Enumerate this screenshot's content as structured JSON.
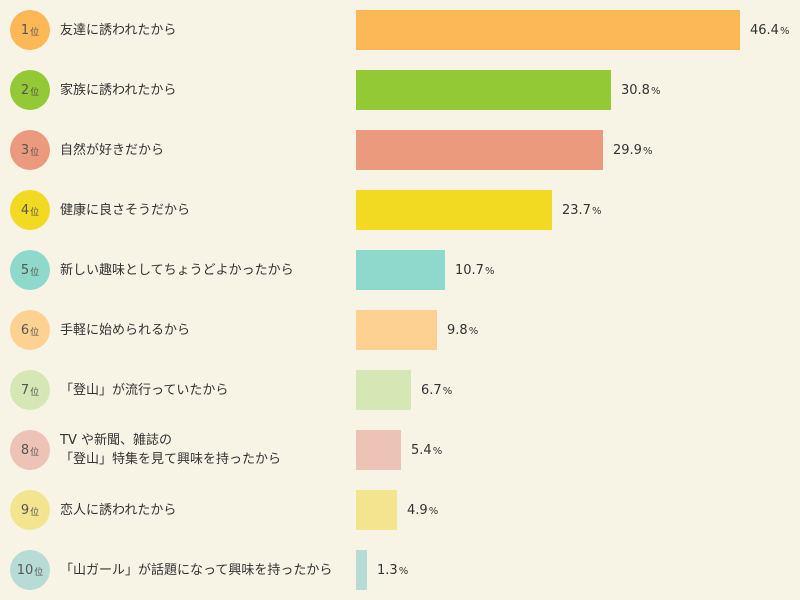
{
  "chart_data": {
    "type": "bar",
    "orientation": "horizontal",
    "rank_suffix": "位",
    "unit": "%",
    "xlim": [
      0,
      46.4
    ],
    "grid": false,
    "rows": [
      {
        "rank": "1",
        "label": "友達に誘われたから",
        "value": 46.4,
        "value_text": "46.4",
        "color": "#fcb856"
      },
      {
        "rank": "2",
        "label": "家族に誘われたから",
        "value": 30.8,
        "value_text": "30.8",
        "color": "#92c934"
      },
      {
        "rank": "3",
        "label": "自然が好きだから",
        "value": 29.9,
        "value_text": "29.9",
        "color": "#ec9a7d"
      },
      {
        "rank": "4",
        "label": "健康に良さそうだから",
        "value": 23.7,
        "value_text": "23.7",
        "color": "#f2da22"
      },
      {
        "rank": "5",
        "label": "新しい趣味としてちょうどよかったから",
        "value": 10.7,
        "value_text": "10.7",
        "color": "#8fd8cc"
      },
      {
        "rank": "6",
        "label": "手軽に始められるから",
        "value": 9.8,
        "value_text": "9.8",
        "color": "#fdd191"
      },
      {
        "rank": "7",
        "label": "「登山」が流行っていたから",
        "value": 6.7,
        "value_text": "6.7",
        "color": "#d5e7b4"
      },
      {
        "rank": "8",
        "label": "TV や新聞、雑誌の\n「登山」特集を見て興味を持ったから",
        "value": 5.4,
        "value_text": "5.4",
        "color": "#edc3b6"
      },
      {
        "rank": "9",
        "label": "恋人に誘われたから",
        "value": 4.9,
        "value_text": "4.9",
        "color": "#f3e58f"
      },
      {
        "rank": "10",
        "label": "「山ガール」が話題になって興味を持ったから",
        "value": 1.3,
        "value_text": "1.3",
        "color": "#b7dcd6"
      }
    ]
  }
}
